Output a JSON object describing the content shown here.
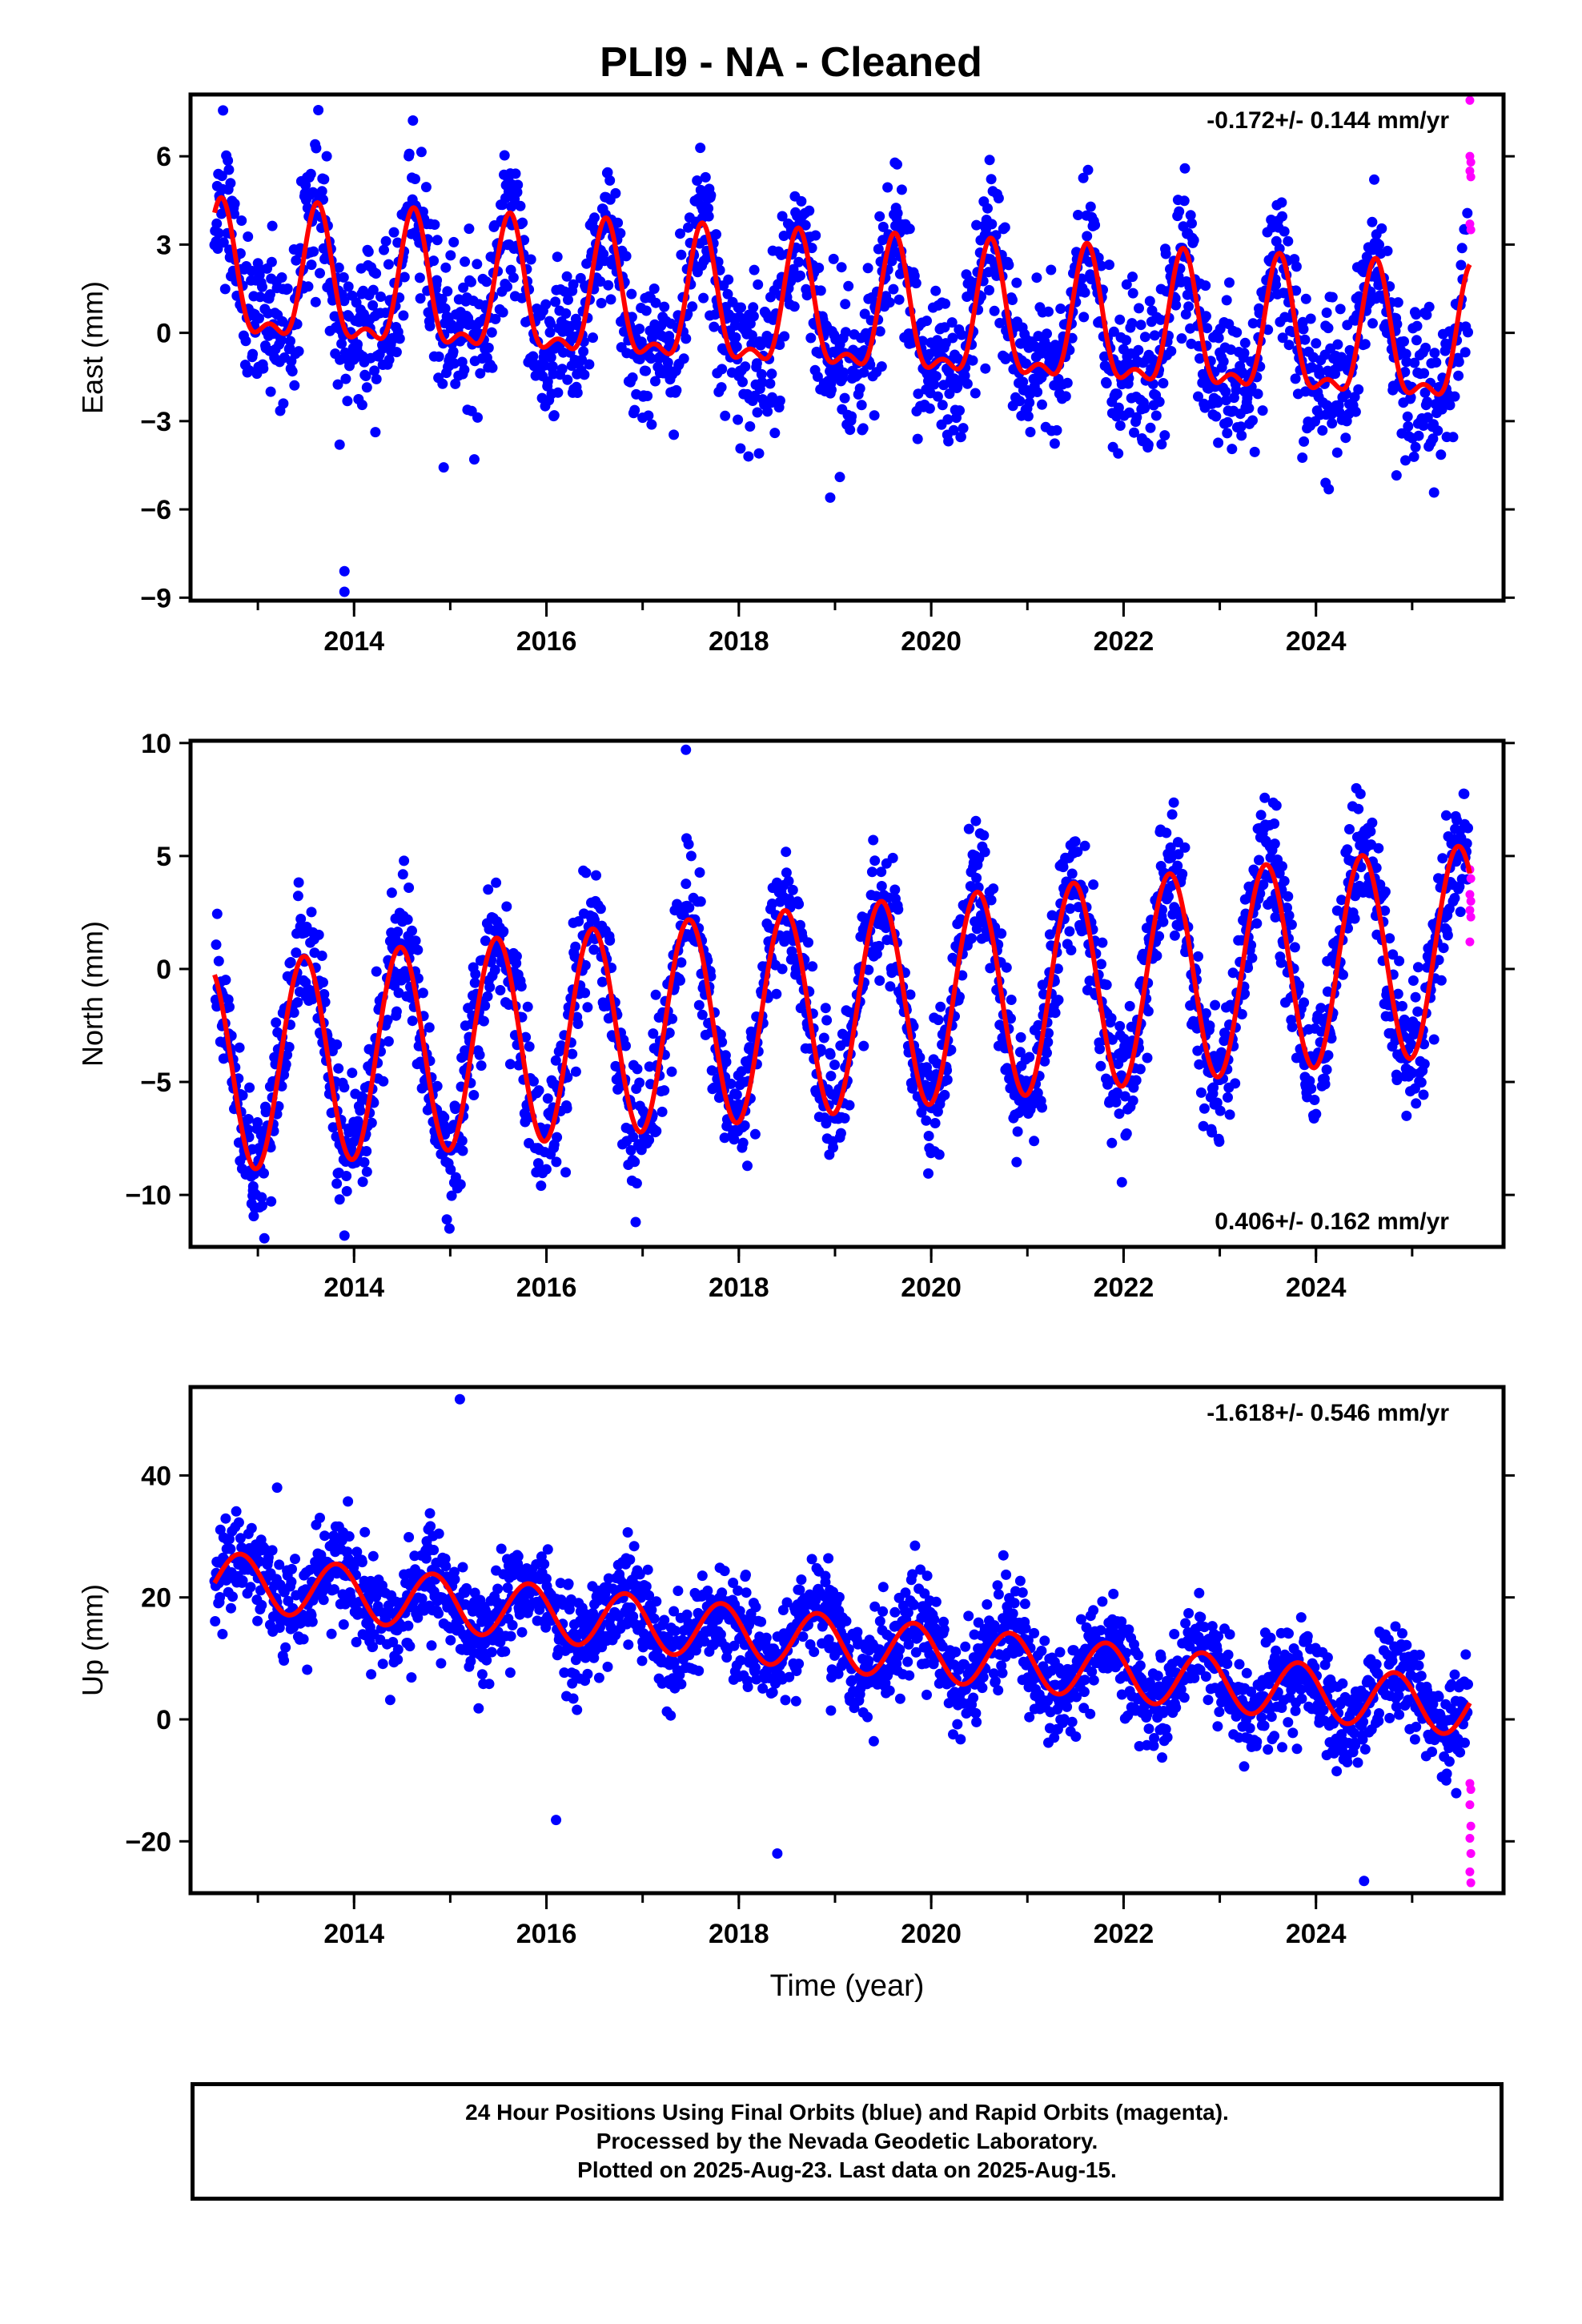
{
  "title": "PLI9  - NA - Cleaned",
  "colors": {
    "final": "#0000ff",
    "rapid": "#ff00ff",
    "model": "#ff0000",
    "axis": "#000000"
  },
  "chart_data": [
    {
      "type": "scatter",
      "component": "east",
      "ylabel": "East (mm)",
      "xlabel": "",
      "xlim": [
        2012.3,
        2025.95
      ],
      "ylim": [
        -9.1,
        8.1
      ],
      "yticks": [
        6,
        3,
        0,
        -3,
        -6,
        -9
      ],
      "ytick_labels": [
        "6",
        "3",
        "0",
        "−3",
        "−6",
        "−9"
      ],
      "xticks": [
        2014,
        2016,
        2018,
        2020,
        2022,
        2024
      ],
      "xtick_labels": [
        "2014",
        "2016",
        "2018",
        "2020",
        "2022",
        "2024"
      ],
      "annotation": "-0.172+/- 0.144 mm/yr",
      "annotation_position": "top-right",
      "model": {
        "offset": 0.5,
        "rate": -0.172,
        "annual_amp": 2.1,
        "annual_peak": 0.62,
        "semi_amp": 0.9,
        "semi_peak": 0.62,
        "noise_sd": 1.25
      },
      "series": [
        {
          "role": "final_orbits",
          "start": 2012.55,
          "end": 2025.58,
          "step": 0.0055,
          "seed": 11
        },
        {
          "role": "rapid_orbits",
          "points": [
            [
              2025.6,
              7.9
            ],
            [
              2025.6,
              6.0
            ],
            [
              2025.61,
              5.8
            ],
            [
              2025.6,
              5.5
            ],
            [
              2025.61,
              5.3
            ],
            [
              2025.6,
              3.7
            ],
            [
              2025.61,
              3.5
            ]
          ]
        }
      ],
      "outliers": [
        [
          2013.9,
          -8.1
        ],
        [
          2013.9,
          -8.8
        ],
        [
          2013.85,
          -3.8
        ],
        [
          2018.1,
          -4.2
        ],
        [
          2018.95,
          -5.6
        ],
        [
          2019.05,
          -4.9
        ],
        [
          2024.1,
          -5.1
        ],
        [
          2015.25,
          -4.3
        ]
      ],
      "trend_x_range": [
        2012.55,
        2025.6
      ]
    },
    {
      "type": "scatter",
      "component": "north",
      "ylabel": "North (mm)",
      "xlabel": "",
      "xlim": [
        2012.3,
        2025.95
      ],
      "ylim": [
        -12.3,
        10.1
      ],
      "yticks": [
        10,
        5,
        0,
        -5,
        -10
      ],
      "ytick_labels": [
        "10",
        "5",
        "0",
        "−5",
        "−10"
      ],
      "xticks": [
        2014,
        2016,
        2018,
        2020,
        2022,
        2024
      ],
      "xtick_labels": [
        "2014",
        "2016",
        "2018",
        "2020",
        "2022",
        "2024"
      ],
      "annotation": "0.406+/- 0.162 mm/yr",
      "annotation_position": "bottom-right",
      "model": {
        "offset": -1.8,
        "rate": 0.406,
        "annual_amp": 4.6,
        "annual_peak": 0.48,
        "semi_amp": 0.0,
        "semi_peak": 0.0,
        "noise_sd": 1.4
      },
      "series": [
        {
          "role": "final_orbits",
          "start": 2012.55,
          "end": 2025.58,
          "step": 0.0055,
          "seed": 23
        },
        {
          "role": "rapid_orbits",
          "points": [
            [
              2025.6,
              4.4
            ],
            [
              2025.61,
              4.0
            ],
            [
              2025.6,
              3.3
            ],
            [
              2025.61,
              3.0
            ],
            [
              2025.6,
              2.6
            ],
            [
              2025.61,
              2.3
            ],
            [
              2025.6,
              1.2
            ]
          ]
        }
      ],
      "outliers": [
        [
          2017.45,
          9.7
        ],
        [
          2013.9,
          -11.8
        ],
        [
          2013.85,
          -10.2
        ],
        [
          2013.82,
          -9.5
        ],
        [
          2016.2,
          -9.0
        ],
        [
          2012.95,
          -9.8
        ],
        [
          2023.95,
          -5.3
        ]
      ],
      "trend_x_range": [
        2012.55,
        2025.6
      ]
    },
    {
      "type": "scatter",
      "component": "up",
      "ylabel": "Up (mm)",
      "xlabel": "Time (year)",
      "xlim": [
        2012.3,
        2025.95
      ],
      "ylim": [
        -28.5,
        54.5
      ],
      "yticks": [
        40,
        20,
        0,
        -20
      ],
      "ytick_labels": [
        "40",
        "20",
        "0",
        "−20"
      ],
      "xticks": [
        2014,
        2016,
        2018,
        2020,
        2022,
        2024
      ],
      "xtick_labels": [
        "2014",
        "2016",
        "2018",
        "2020",
        "2022",
        "2024"
      ],
      "annotation": "-1.618+/- 0.546 mm/yr",
      "annotation_position": "top-right",
      "model": {
        "offset": 12.5,
        "rate": -1.618,
        "annual_amp": 4.6,
        "annual_peak": 0.82,
        "semi_amp": 0.0,
        "semi_peak": 0.0,
        "noise_sd": 4.2
      },
      "series": [
        {
          "role": "final_orbits",
          "start": 2012.55,
          "end": 2025.58,
          "step": 0.0055,
          "seed": 37
        },
        {
          "role": "rapid_orbits",
          "points": [
            [
              2025.6,
              -10.5
            ],
            [
              2025.61,
              -11.5
            ],
            [
              2025.6,
              -14.0
            ],
            [
              2025.61,
              -17.5
            ],
            [
              2025.6,
              -19.5
            ],
            [
              2025.61,
              -22.0
            ],
            [
              2025.6,
              -25.0
            ],
            [
              2025.61,
              -26.8
            ]
          ]
        }
      ],
      "outliers": [
        [
          2015.1,
          52.5
        ],
        [
          2013.2,
          38.0
        ],
        [
          2013.95,
          30.0
        ],
        [
          2018.9,
          23.5
        ],
        [
          2018.9,
          22.5
        ],
        [
          2020.95,
          20.8
        ],
        [
          2022.8,
          15.3
        ],
        [
          2018.4,
          -22.0
        ],
        [
          2024.5,
          -26.5
        ],
        [
          2016.1,
          -16.5
        ]
      ],
      "trend_x_range": [
        2012.55,
        2025.6
      ]
    }
  ],
  "footer": {
    "line1": "24 Hour Positions Using Final Orbits (blue) and Rapid Orbits (magenta).",
    "line2": "Processed by the Nevada Geodetic Laboratory.",
    "line3": "Plotted on 2025-Aug-23. Last data on 2025-Aug-15."
  }
}
